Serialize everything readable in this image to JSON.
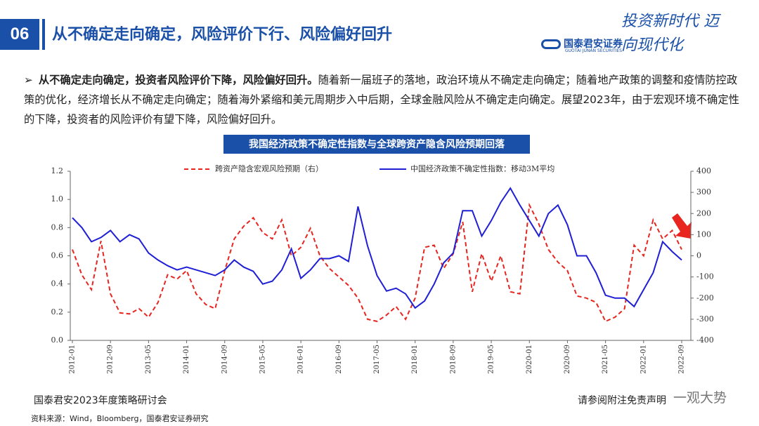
{
  "header": {
    "section": "06",
    "title": "从不确定走向确定，风险评价下行、风险偏好回升",
    "logo": "国泰君安证券",
    "logo_en": "GUOTAI JUNAN SECURITIES",
    "slogan": "投资新时代 迈向现代化"
  },
  "bullet": {
    "lead": "从不确定走向确定，投资者风险评价下降，风险偏好回升。",
    "text": "随着新一届班子的落地，政治环境从不确定走向确定；随着地产政策的调整和疫情防控政策的优化，经济增长从不确定走向确定；随着海外紧缩和美元周期步入中后期，全球金融风险从不确定走向确定。展望2023年，由于宏观环境不确定性的下降，投资者的风险评价有望下降，风险偏好回升。"
  },
  "chart_data": {
    "type": "line",
    "title": "我国经济政策不确定性指数与全球跨资产隐含风险预期回落",
    "categories": [
      "2012-01",
      null,
      null,
      null,
      "2012-09",
      null,
      null,
      null,
      "2013-05",
      null,
      null,
      null,
      "2014-01",
      null,
      null,
      null,
      "2014-09",
      null,
      null,
      null,
      "2015-05",
      null,
      null,
      null,
      "2016-01",
      null,
      null,
      null,
      "2016-09",
      null,
      null,
      null,
      "2017-05",
      null,
      null,
      null,
      "2018-01",
      null,
      null,
      null,
      "2018-09",
      null,
      null,
      null,
      "2019-05",
      null,
      null,
      null,
      "2020-01",
      null,
      null,
      null,
      "2020-09",
      null,
      null,
      null,
      "2021-05",
      null,
      null,
      null,
      "2022-01",
      null,
      null,
      null,
      "2022-09"
    ],
    "series": [
      {
        "name": "跨资产隐含宏观风险预期（右）",
        "color": "#e8251f",
        "dashed": true,
        "axis": "y2",
        "values": [
          30,
          -90,
          -160,
          70,
          -180,
          -270,
          -275,
          -250,
          -290,
          -220,
          -90,
          -110,
          -70,
          -180,
          -230,
          -250,
          -70,
          80,
          140,
          180,
          110,
          80,
          170,
          0,
          40,
          130,
          0,
          -60,
          -100,
          -140,
          -200,
          -300,
          -310,
          -280,
          -240,
          -300,
          -200,
          40,
          50,
          -60,
          10,
          160,
          -170,
          10,
          -120,
          0,
          -170,
          -180,
          240,
          150,
          30,
          -30,
          -70,
          -190,
          -200,
          -220,
          -310,
          -290,
          -250,
          50,
          0,
          170,
          80,
          120,
          30
        ]
      },
      {
        "name": "中国经济政策不确定性指数：移动3M平均",
        "color": "#1f1fd6",
        "dashed": false,
        "values": [
          0.87,
          0.8,
          0.7,
          0.73,
          0.78,
          0.7,
          0.75,
          0.72,
          0.62,
          0.57,
          0.53,
          0.5,
          0.52,
          0.5,
          0.48,
          0.46,
          0.5,
          0.57,
          0.52,
          0.49,
          0.4,
          0.42,
          0.5,
          0.65,
          0.44,
          0.5,
          0.58,
          0.58,
          0.6,
          0.56,
          0.95,
          0.67,
          0.46,
          0.35,
          0.37,
          0.33,
          0.23,
          0.28,
          0.4,
          0.55,
          0.62,
          0.92,
          0.92,
          0.74,
          0.85,
          0.98,
          1.08,
          0.96,
          0.85,
          0.74,
          0.9,
          0.96,
          0.82,
          0.6,
          0.6,
          0.48,
          0.32,
          0.3,
          0.3,
          0.24,
          0.36,
          0.48,
          0.7,
          0.63,
          0.57
        ]
      }
    ],
    "ylim": [
      0,
      1.2
    ],
    "yticks": [
      {
        "value": 0,
        "label": "0.0"
      },
      {
        "value": 0.2,
        "label": "0.2"
      },
      {
        "value": 0.4,
        "label": "0.4"
      },
      {
        "value": 0.6,
        "label": "0.6"
      },
      {
        "value": 0.8,
        "label": "0.8"
      },
      {
        "value": 1,
        "label": "1.0"
      },
      {
        "value": 1.2,
        "label": "1.2"
      }
    ],
    "y2lim": [
      -400,
      400
    ],
    "y2ticks": [
      -400,
      -300,
      -200,
      -100,
      0,
      100,
      200,
      300,
      400
    ]
  },
  "footer": {
    "event": "国泰君安2023年度策略研讨会",
    "disclaimer": "请参阅附注免责声明",
    "source": "资料来源：Wind，Bloomberg，国泰君安证券研究",
    "watermark": "一观大势"
  }
}
